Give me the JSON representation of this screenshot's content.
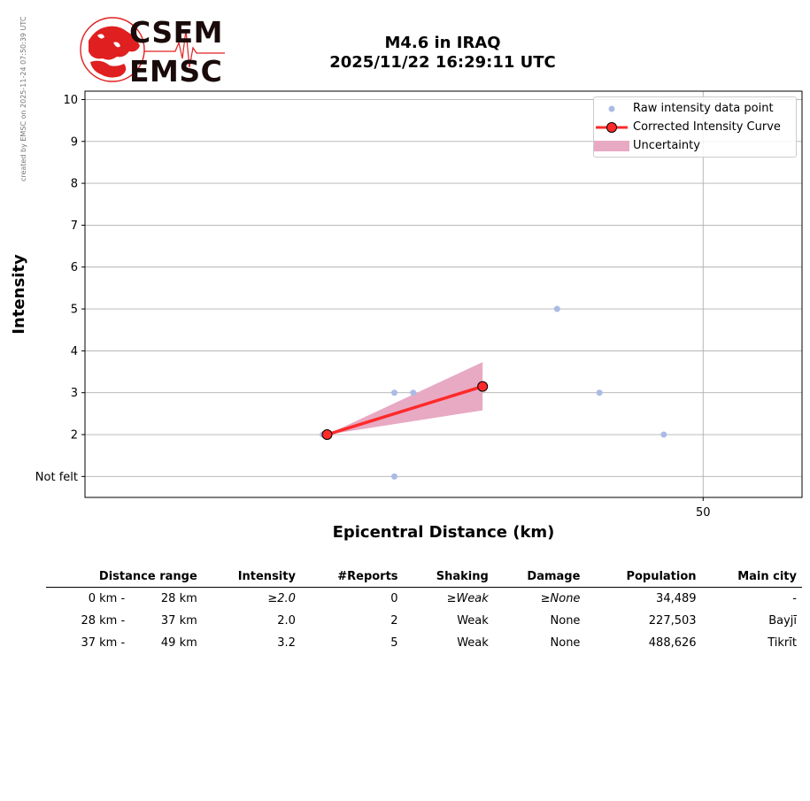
{
  "stamp": "created by EMSC on 2025-11-24 07:50:39 UTC",
  "logo": {
    "top": "CSEM",
    "bottom": "EMSC"
  },
  "title_line1": "M4.6 in IRAQ",
  "title_line2": "2025/11/22 16:29:11 UTC",
  "legend": {
    "raw": "Raw intensity data point",
    "curve": "Corrected Intensity Curve",
    "uncertainty": "Uncertainty"
  },
  "colors": {
    "raw_points": "#aabbe6",
    "curve": "#ff2a2a",
    "uncertainty": "#e8a9c3",
    "logo_red": "#e02020"
  },
  "chart_data": {
    "type": "scatter",
    "xlabel": "Epicentral Distance (km)",
    "ylabel": "Intensity",
    "xscale": "log",
    "xlim": [
      16,
      60
    ],
    "ylim": [
      0.5,
      10.2
    ],
    "x_ticks": [
      {
        "value": 50,
        "label": "50"
      }
    ],
    "y_ticks": [
      {
        "value": 1,
        "label": "Not felt"
      },
      {
        "value": 2,
        "label": "2"
      },
      {
        "value": 3,
        "label": "3"
      },
      {
        "value": 4,
        "label": "4"
      },
      {
        "value": 5,
        "label": "5"
      },
      {
        "value": 6,
        "label": "6"
      },
      {
        "value": 7,
        "label": "7"
      },
      {
        "value": 8,
        "label": "8"
      },
      {
        "value": 9,
        "label": "9"
      },
      {
        "value": 10,
        "label": "10"
      }
    ],
    "grid": true,
    "legend_position": "top-right",
    "raw_points": [
      {
        "x": 24.8,
        "y": 2
      },
      {
        "x": 28.3,
        "y": 3
      },
      {
        "x": 28.3,
        "y": 1
      },
      {
        "x": 29.3,
        "y": 3
      },
      {
        "x": 38.2,
        "y": 5
      },
      {
        "x": 41.3,
        "y": 3
      },
      {
        "x": 46.5,
        "y": 2
      }
    ],
    "series": [
      {
        "name": "Corrected Intensity Curve",
        "x": [
          25,
          33.3
        ],
        "y": [
          2.0,
          3.15
        ],
        "lower": [
          2.0,
          2.58
        ],
        "upper": [
          2.0,
          3.73
        ]
      }
    ]
  },
  "table": {
    "headers": [
      "Distance range",
      "Intensity",
      "#Reports",
      "Shaking",
      "Damage",
      "Population",
      "Main city"
    ],
    "rows": [
      {
        "dist_from": "0 km -",
        "dist_to": "28 km",
        "intensity": "≥2.0",
        "reports": "0",
        "shaking": "≥Weak",
        "damage": "≥None",
        "population": "34,489",
        "city": "-",
        "italic": true
      },
      {
        "dist_from": "28 km -",
        "dist_to": "37 km",
        "intensity": "2.0",
        "reports": "2",
        "shaking": "Weak",
        "damage": "None",
        "population": "227,503",
        "city": "Bayjī",
        "italic": false
      },
      {
        "dist_from": "37 km -",
        "dist_to": "49 km",
        "intensity": "3.2",
        "reports": "5",
        "shaking": "Weak",
        "damage": "None",
        "population": "488,626",
        "city": "Tikrīt",
        "italic": false
      }
    ]
  }
}
